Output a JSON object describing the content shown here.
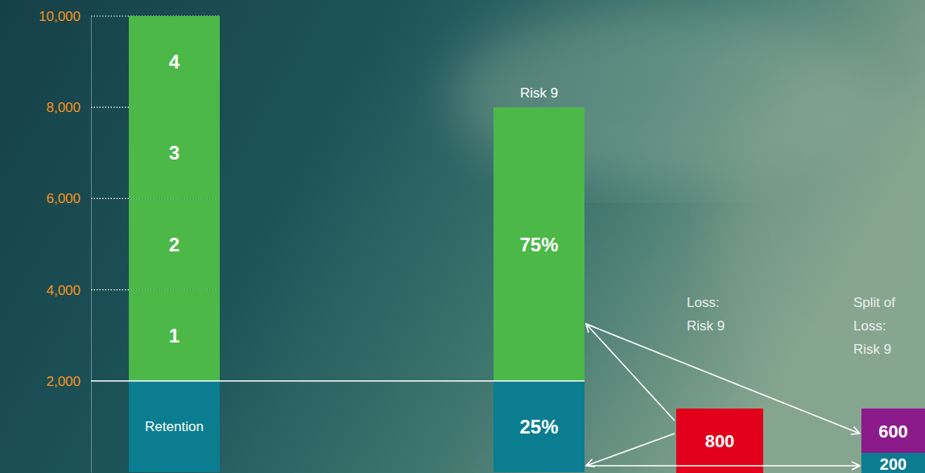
{
  "chart_data": {
    "type": "bar",
    "stacked": true,
    "grid": true,
    "tick_labels": "y",
    "ylim": [
      0,
      10000
    ],
    "yticks": [
      {
        "value": 2000,
        "label": "2,000"
      },
      {
        "value": 4000,
        "label": "4,000"
      },
      {
        "value": 6000,
        "label": "6,000"
      },
      {
        "value": 8000,
        "label": "8,000"
      },
      {
        "value": 10000,
        "label": "10,000"
      }
    ],
    "categories": [
      null,
      "Risk 9"
    ],
    "stacks": [
      [
        {
          "value": 2000,
          "text": "Retention",
          "color": "#0b7d90"
        },
        {
          "value": 2000,
          "text": "1",
          "color": "#4cb848"
        },
        {
          "value": 2000,
          "text": "2",
          "color": "#4cb848"
        },
        {
          "value": 2000,
          "text": "3",
          "color": "#4cb848"
        },
        {
          "value": 2000,
          "text": "4",
          "color": "#4cb848"
        }
      ],
      [
        {
          "value": 2000,
          "text": "25%",
          "color": "#0b7d90"
        },
        {
          "value": 6000,
          "text": "75%",
          "color": "#4cb848"
        }
      ]
    ],
    "loss": {
      "label_lines": [
        "Loss:",
        "Risk 9"
      ],
      "value": 800,
      "color": "#e2001a"
    },
    "split": {
      "label_lines": [
        "Split of",
        "Loss:",
        "Risk 9"
      ],
      "parts": [
        {
          "value": 600,
          "color": "#8b1a8b"
        },
        {
          "value": 200,
          "color": "#0b7d90"
        }
      ]
    }
  }
}
